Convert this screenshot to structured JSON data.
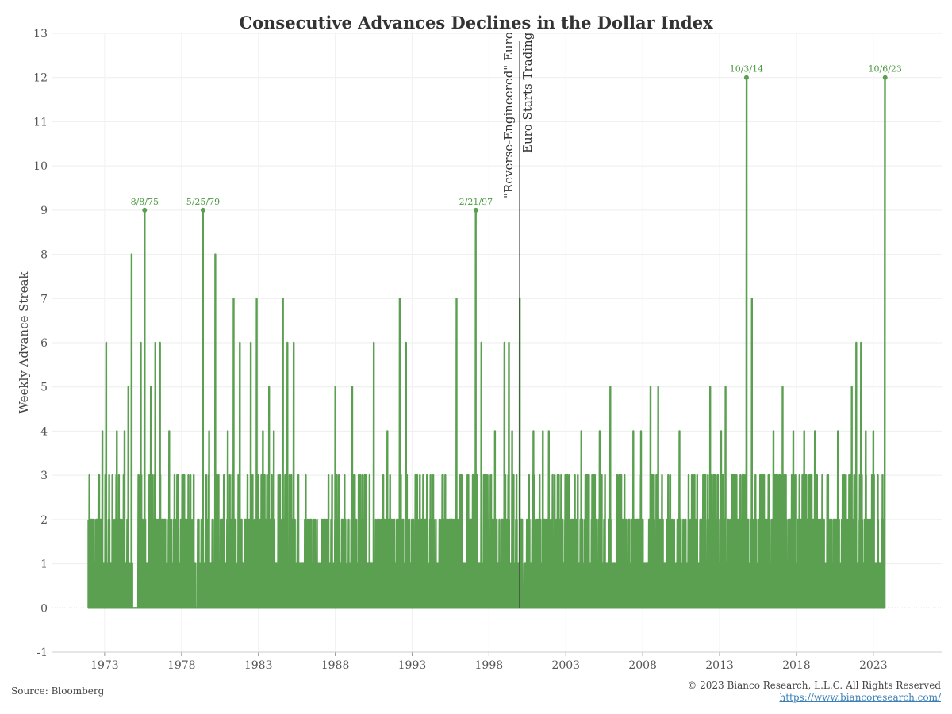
{
  "chart_data": {
    "type": "line",
    "title": "Consecutive Advances Declines in the Dollar Index",
    "ylabel": "Weekly Advance Streak",
    "xlabel": "",
    "ylim": [
      -1,
      13
    ],
    "xlim": [
      1969.6,
      2027.5
    ],
    "yticks": [
      "-1",
      "0",
      "1",
      "2",
      "3",
      "4",
      "5",
      "6",
      "7",
      "8",
      "9",
      "10",
      "11",
      "12",
      "13"
    ],
    "xticks": [
      "1973",
      "1978",
      "1983",
      "1988",
      "1993",
      "1998",
      "2003",
      "2008",
      "2013",
      "2018",
      "2023"
    ],
    "grid": true,
    "color": "#5aa050",
    "peaks": [
      {
        "x": 1975.6,
        "y": 9,
        "label": "8/8/75"
      },
      {
        "x": 1979.4,
        "y": 9,
        "label": "5/25/79"
      },
      {
        "x": 1997.15,
        "y": 9,
        "label": "2/21/97"
      },
      {
        "x": 2014.75,
        "y": 12,
        "label": "10/3/14"
      },
      {
        "x": 2023.77,
        "y": 12,
        "label": "10/6/23"
      }
    ],
    "spikes": [
      {
        "x": 1971.95,
        "y": 2
      },
      {
        "x": 1972.6,
        "y": 3
      },
      {
        "x": 1972.85,
        "y": 4
      },
      {
        "x": 1973.1,
        "y": 6
      },
      {
        "x": 1973.3,
        "y": 3
      },
      {
        "x": 1973.8,
        "y": 4
      },
      {
        "x": 1974.3,
        "y": 4
      },
      {
        "x": 1974.55,
        "y": 5
      },
      {
        "x": 1974.75,
        "y": 8
      },
      {
        "x": 1975.2,
        "y": 3
      },
      {
        "x": 1975.35,
        "y": 6
      },
      {
        "x": 1976.0,
        "y": 5
      },
      {
        "x": 1976.3,
        "y": 6
      },
      {
        "x": 1976.6,
        "y": 6
      },
      {
        "x": 1977.2,
        "y": 4
      },
      {
        "x": 1977.8,
        "y": 3
      },
      {
        "x": 1978.8,
        "y": 3
      },
      {
        "x": 1979.8,
        "y": 4
      },
      {
        "x": 1980.2,
        "y": 8
      },
      {
        "x": 1980.7,
        "y": 2
      },
      {
        "x": 1981.0,
        "y": 4
      },
      {
        "x": 1981.4,
        "y": 7
      },
      {
        "x": 1981.8,
        "y": 6
      },
      {
        "x": 1982.3,
        "y": 3
      },
      {
        "x": 1982.5,
        "y": 6
      },
      {
        "x": 1982.9,
        "y": 7
      },
      {
        "x": 1983.3,
        "y": 4
      },
      {
        "x": 1983.7,
        "y": 5
      },
      {
        "x": 1984.0,
        "y": 4
      },
      {
        "x": 1984.3,
        "y": 3
      },
      {
        "x": 1984.6,
        "y": 7
      },
      {
        "x": 1984.9,
        "y": 6
      },
      {
        "x": 1985.3,
        "y": 6
      },
      {
        "x": 1985.6,
        "y": 3
      },
      {
        "x": 1986.3,
        "y": 2
      },
      {
        "x": 1987.2,
        "y": 2
      },
      {
        "x": 1987.8,
        "y": 3
      },
      {
        "x": 1988.0,
        "y": 5
      },
      {
        "x": 1988.6,
        "y": 3
      },
      {
        "x": 1989.1,
        "y": 5
      },
      {
        "x": 1989.8,
        "y": 3
      },
      {
        "x": 1990.5,
        "y": 6
      },
      {
        "x": 1991.4,
        "y": 4
      },
      {
        "x": 1992.2,
        "y": 7
      },
      {
        "x": 1992.6,
        "y": 6
      },
      {
        "x": 1993.5,
        "y": 3
      },
      {
        "x": 1994.2,
        "y": 3
      },
      {
        "x": 1995.0,
        "y": 3
      },
      {
        "x": 1995.9,
        "y": 7
      },
      {
        "x": 1996.6,
        "y": 3
      },
      {
        "x": 1997.5,
        "y": 6
      },
      {
        "x": 1998.0,
        "y": 3
      },
      {
        "x": 1998.4,
        "y": 4
      },
      {
        "x": 1999.0,
        "y": 6
      },
      {
        "x": 1999.3,
        "y": 6
      },
      {
        "x": 1999.5,
        "y": 4
      },
      {
        "x": 2000.0,
        "y": 7
      },
      {
        "x": 2000.9,
        "y": 4
      },
      {
        "x": 2001.5,
        "y": 4
      },
      {
        "x": 2001.9,
        "y": 4
      },
      {
        "x": 2002.5,
        "y": 3
      },
      {
        "x": 2003.2,
        "y": 2
      },
      {
        "x": 2004.0,
        "y": 4
      },
      {
        "x": 2004.5,
        "y": 3
      },
      {
        "x": 2005.2,
        "y": 4
      },
      {
        "x": 2005.9,
        "y": 5
      },
      {
        "x": 2006.6,
        "y": 3
      },
      {
        "x": 2007.4,
        "y": 4
      },
      {
        "x": 2007.9,
        "y": 4
      },
      {
        "x": 2008.5,
        "y": 5
      },
      {
        "x": 2009.0,
        "y": 5
      },
      {
        "x": 2009.8,
        "y": 3
      },
      {
        "x": 2010.4,
        "y": 4
      },
      {
        "x": 2011.2,
        "y": 3
      },
      {
        "x": 2012.0,
        "y": 3
      },
      {
        "x": 2012.4,
        "y": 5
      },
      {
        "x": 2013.1,
        "y": 4
      },
      {
        "x": 2013.4,
        "y": 5
      },
      {
        "x": 2014.1,
        "y": 3
      },
      {
        "x": 2015.1,
        "y": 7
      },
      {
        "x": 2015.8,
        "y": 3
      },
      {
        "x": 2016.5,
        "y": 4
      },
      {
        "x": 2017.1,
        "y": 5
      },
      {
        "x": 2017.8,
        "y": 4
      },
      {
        "x": 2018.5,
        "y": 4
      },
      {
        "x": 2019.2,
        "y": 4
      },
      {
        "x": 2020.0,
        "y": 3
      },
      {
        "x": 2020.7,
        "y": 4
      },
      {
        "x": 2021.6,
        "y": 5
      },
      {
        "x": 2021.9,
        "y": 6
      },
      {
        "x": 2022.2,
        "y": 6
      },
      {
        "x": 2022.5,
        "y": 4
      },
      {
        "x": 2023.0,
        "y": 4
      },
      {
        "x": 2023.3,
        "y": 3
      }
    ],
    "start_x": 1971.95,
    "end_x": 2023.77,
    "annotation": {
      "x": 2000.0,
      "line1": "\"Reverse-Engineered\" Euro",
      "line2": "Euro Starts Trading"
    }
  },
  "footer": {
    "source": "Source: Bloomberg",
    "copyright": "© 2023 Bianco Research, L.L.C. All Rights Reserved",
    "url": "https://www.biancoresearch.com/"
  }
}
